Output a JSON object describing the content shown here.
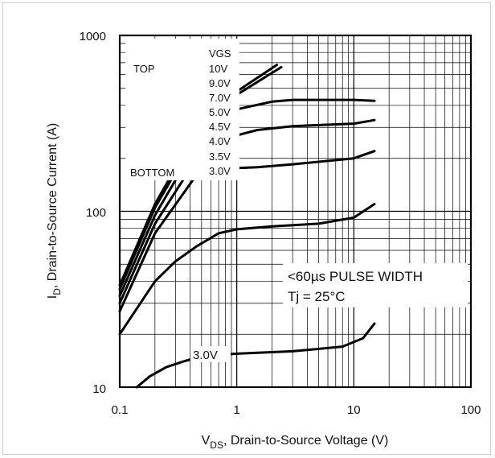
{
  "chart_data": {
    "type": "line",
    "x_scale": "log",
    "y_scale": "log",
    "xlim": [
      0.1,
      100
    ],
    "ylim": [
      10,
      1000
    ],
    "x_ticks": [
      "0.1",
      "1",
      "10",
      "100"
    ],
    "y_ticks": [
      "10",
      "100",
      "1000"
    ],
    "x_label_main": "V",
    "x_label_sub": "DS",
    "x_label_rest": ", Drain-to-Source Voltage (V)",
    "y_label_main": "I",
    "y_label_sub": "D",
    "y_label_rest": ", Drain-to-Source Current (A)",
    "grid": true,
    "legend": {
      "header": "VGS",
      "top_label": "TOP",
      "bottom_label": "BOTTOM",
      "entries": [
        "10V",
        "9.0V",
        "7.0V",
        "5.0V",
        "4.5V",
        "4.0V",
        "3.5V",
        "3.0V"
      ]
    },
    "annotations": [
      "<60µs PULSE WIDTH",
      "Tj = 25°C"
    ],
    "curve_label": "3.0V",
    "series": [
      {
        "points": [
          [
            0.1,
            38
          ],
          [
            0.2,
            110
          ],
          [
            0.5,
            320
          ],
          [
            1,
            480
          ],
          [
            2.2,
            680
          ]
        ]
      },
      {
        "points": [
          [
            0.1,
            36
          ],
          [
            0.2,
            105
          ],
          [
            0.5,
            300
          ],
          [
            1,
            460
          ],
          [
            2.4,
            660
          ]
        ]
      },
      {
        "points": [
          [
            0.1,
            33
          ],
          [
            0.2,
            95
          ],
          [
            0.5,
            270
          ],
          [
            1,
            380
          ],
          [
            2,
            420
          ],
          [
            3,
            430
          ],
          [
            10,
            430
          ],
          [
            15,
            425
          ]
        ]
      },
      {
        "points": [
          [
            0.1,
            30
          ],
          [
            0.2,
            85
          ],
          [
            0.5,
            220
          ],
          [
            0.8,
            260
          ],
          [
            1.5,
            290
          ],
          [
            3,
            305
          ],
          [
            10,
            315
          ],
          [
            15,
            330
          ]
        ]
      },
      {
        "points": [
          [
            0.1,
            27
          ],
          [
            0.2,
            75
          ],
          [
            0.45,
            160
          ],
          [
            0.8,
            175
          ],
          [
            1.5,
            178
          ],
          [
            3,
            185
          ],
          [
            10,
            200
          ],
          [
            15,
            220
          ]
        ]
      },
      {
        "points": [
          [
            0.1,
            20
          ],
          [
            0.15,
            30
          ],
          [
            0.2,
            40
          ],
          [
            0.3,
            52
          ],
          [
            0.45,
            63
          ],
          [
            0.7,
            75
          ],
          [
            1,
            79
          ],
          [
            2,
            82
          ],
          [
            5,
            85
          ],
          [
            10,
            92
          ],
          [
            15,
            110
          ]
        ]
      },
      {
        "points": [
          [
            0.14,
            10
          ],
          [
            0.18,
            11.5
          ],
          [
            0.25,
            13
          ],
          [
            0.35,
            14
          ],
          [
            0.5,
            15
          ],
          [
            1,
            15.5
          ],
          [
            3,
            16
          ],
          [
            8,
            17
          ],
          [
            12,
            19
          ],
          [
            15,
            23
          ]
        ]
      }
    ]
  }
}
